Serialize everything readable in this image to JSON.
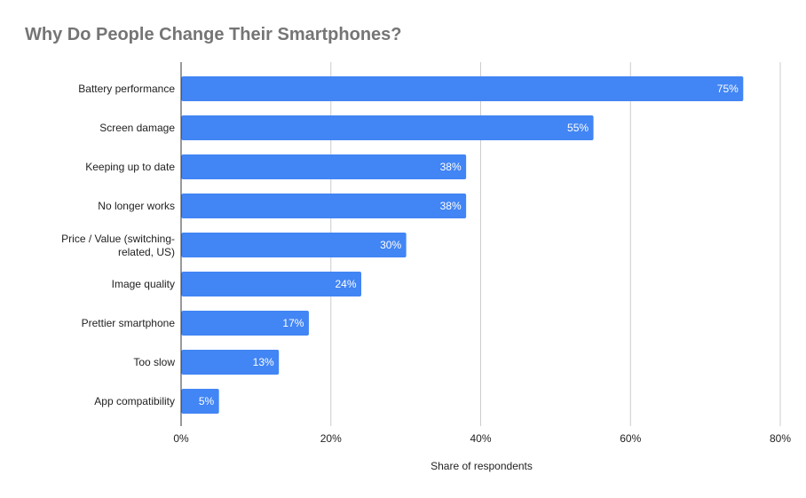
{
  "chart_data": {
    "type": "bar",
    "orientation": "horizontal",
    "title": "Why Do People Change Their Smartphones?",
    "xlabel": "Share of respondents",
    "ylabel": "",
    "categories": [
      "Battery performance",
      "Screen damage",
      "Keeping up to date",
      "No longer works",
      "Price / Value (switching-related, US)",
      "Image quality",
      "Prettier smartphone",
      "Too slow",
      "App compatibility"
    ],
    "values": [
      75,
      55,
      38,
      38,
      30,
      24,
      17,
      13,
      5
    ],
    "data_labels": [
      "75%",
      "55%",
      "38%",
      "38%",
      "30%",
      "24%",
      "17%",
      "13%",
      "5%"
    ],
    "xlim": [
      0,
      80
    ],
    "xticks": [
      "0%",
      "20%",
      "40%",
      "60%",
      "80%"
    ],
    "grid": true,
    "legend": "none",
    "bar_color": "#4285f4"
  }
}
